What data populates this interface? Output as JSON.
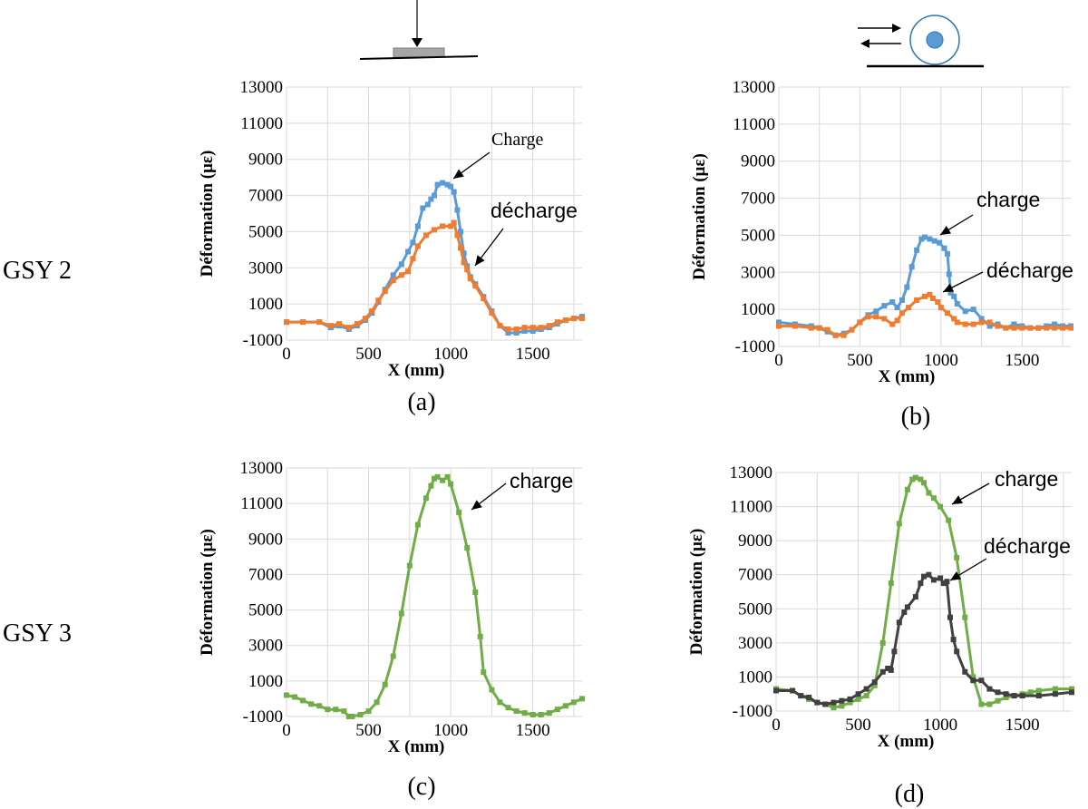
{
  "row_labels": [
    "GSY 2",
    "GSY 3"
  ],
  "chart_data": [
    {
      "type": "line",
      "panel": "(a)",
      "row": "GSY 2",
      "xlabel": "X (mm)",
      "ylabel": "Déformation (με)",
      "xlim": [
        0,
        1800
      ],
      "ylim": [
        -1000,
        13000
      ],
      "xticks": [
        0,
        500,
        1000,
        1500
      ],
      "yticks": [
        -1000,
        1000,
        3000,
        5000,
        7000,
        9000,
        11000,
        13000
      ],
      "series": [
        {
          "name": "Charge",
          "color": "#5B9BD5",
          "x": [
            0,
            100,
            200,
            270,
            320,
            380,
            430,
            480,
            520,
            560,
            600,
            650,
            700,
            740,
            770,
            800,
            830,
            860,
            880,
            900,
            920,
            950,
            980,
            1000,
            1020,
            1040,
            1060,
            1080,
            1100,
            1120,
            1150,
            1200,
            1250,
            1300,
            1350,
            1400,
            1450,
            1500,
            1550,
            1600,
            1650,
            1700,
            1750,
            1800
          ],
          "y": [
            0,
            0,
            0,
            -300,
            -200,
            -400,
            -200,
            100,
            500,
            1100,
            1800,
            2600,
            3200,
            3900,
            4400,
            5300,
            6300,
            6500,
            6800,
            7000,
            7600,
            7700,
            7600,
            7500,
            7200,
            6200,
            5000,
            3800,
            3100,
            2500,
            2100,
            1400,
            600,
            -200,
            -600,
            -600,
            -500,
            -500,
            -400,
            -300,
            -100,
            100,
            200,
            300
          ]
        },
        {
          "name": "décharge",
          "color": "#ED7D31",
          "x": [
            0,
            100,
            200,
            270,
            320,
            380,
            430,
            480,
            520,
            560,
            600,
            650,
            700,
            740,
            770,
            800,
            850,
            900,
            950,
            1000,
            1020,
            1040,
            1060,
            1080,
            1100,
            1120,
            1150,
            1200,
            1250,
            1300,
            1350,
            1400,
            1450,
            1500,
            1550,
            1600,
            1650,
            1700,
            1750,
            1800
          ],
          "y": [
            0,
            0,
            0,
            -200,
            -100,
            -300,
            -100,
            200,
            600,
            1200,
            1700,
            2300,
            2600,
            2800,
            3500,
            4200,
            4800,
            5100,
            5300,
            5300,
            5500,
            4800,
            4100,
            3300,
            2900,
            2400,
            2000,
            1300,
            500,
            -200,
            -400,
            -400,
            -300,
            -300,
            -300,
            -200,
            0,
            100,
            200,
            200
          ]
        }
      ],
      "annotations": [
        {
          "text": "Charge",
          "series": "Charge"
        },
        {
          "text": "décharge",
          "series": "décharge"
        }
      ]
    },
    {
      "type": "line",
      "panel": "(b)",
      "row": "GSY 2",
      "xlabel": "X (mm)",
      "ylabel": "Déformation (με)",
      "xlim": [
        0,
        1800
      ],
      "ylim": [
        -1000,
        13000
      ],
      "xticks": [
        0,
        500,
        1000,
        1500
      ],
      "yticks": [
        -1000,
        1000,
        3000,
        5000,
        7000,
        9000,
        11000,
        13000
      ],
      "series": [
        {
          "name": "charge",
          "color": "#5B9BD5",
          "x": [
            0,
            100,
            200,
            250,
            300,
            350,
            400,
            450,
            500,
            550,
            600,
            650,
            700,
            730,
            760,
            790,
            820,
            850,
            880,
            900,
            930,
            960,
            990,
            1020,
            1040,
            1050,
            1060,
            1080,
            1100,
            1150,
            1200,
            1250,
            1300,
            1350,
            1400,
            1450,
            1500,
            1550,
            1600,
            1650,
            1700,
            1750,
            1800
          ],
          "y": [
            300,
            200,
            100,
            0,
            -200,
            -400,
            -300,
            -100,
            300,
            700,
            900,
            1200,
            1400,
            1100,
            1500,
            2200,
            3300,
            4200,
            4800,
            4900,
            4800,
            4700,
            4600,
            4300,
            4000,
            2900,
            1900,
            1700,
            1300,
            900,
            1000,
            500,
            100,
            200,
            0,
            200,
            100,
            0,
            0,
            100,
            200,
            100,
            100
          ]
        },
        {
          "name": "décharge",
          "color": "#ED7D31",
          "x": [
            0,
            100,
            200,
            250,
            300,
            350,
            400,
            450,
            500,
            550,
            600,
            650,
            700,
            730,
            760,
            800,
            850,
            900,
            930,
            950,
            980,
            1000,
            1040,
            1080,
            1100,
            1150,
            1200,
            1250,
            1300,
            1350,
            1400,
            1450,
            1500,
            1550,
            1600,
            1650,
            1700,
            1750,
            1800
          ],
          "y": [
            100,
            100,
            0,
            0,
            -100,
            -400,
            -400,
            -100,
            300,
            600,
            600,
            500,
            200,
            400,
            800,
            1100,
            1500,
            1700,
            1800,
            1600,
            1400,
            1100,
            800,
            500,
            300,
            200,
            200,
            300,
            300,
            100,
            0,
            0,
            0,
            0,
            0,
            0,
            0,
            0,
            0
          ]
        }
      ],
      "annotations": [
        {
          "text": "charge",
          "series": "charge"
        },
        {
          "text": "décharge",
          "series": "décharge"
        }
      ]
    },
    {
      "type": "line",
      "panel": "(c)",
      "row": "GSY 3",
      "xlabel": "X (mm)",
      "ylabel": "Déformation (με)",
      "xlim": [
        0,
        1800
      ],
      "ylim": [
        -1000,
        13000
      ],
      "xticks": [
        0,
        500,
        1000,
        1500
      ],
      "yticks": [
        -1000,
        1000,
        3000,
        5000,
        7000,
        9000,
        11000,
        13000
      ],
      "series": [
        {
          "name": "charge",
          "color": "#70AD47",
          "x": [
            0,
            50,
            100,
            150,
            200,
            250,
            300,
            350,
            380,
            400,
            450,
            500,
            550,
            600,
            650,
            700,
            750,
            800,
            850,
            880,
            900,
            920,
            950,
            980,
            1000,
            1050,
            1100,
            1150,
            1180,
            1200,
            1250,
            1300,
            1350,
            1400,
            1450,
            1500,
            1550,
            1600,
            1650,
            1700,
            1750,
            1800
          ],
          "y": [
            200,
            100,
            -100,
            -300,
            -400,
            -600,
            -600,
            -700,
            -1000,
            -1000,
            -900,
            -700,
            -200,
            800,
            2400,
            4800,
            7500,
            9800,
            11300,
            12000,
            12400,
            12500,
            12300,
            12500,
            12100,
            10500,
            8500,
            6000,
            3500,
            1500,
            500,
            -200,
            -500,
            -700,
            -800,
            -900,
            -900,
            -800,
            -600,
            -400,
            -200,
            0
          ]
        }
      ],
      "annotations": [
        {
          "text": "charge",
          "series": "charge"
        }
      ]
    },
    {
      "type": "line",
      "panel": "(d)",
      "row": "GSY 3",
      "xlabel": "X (mm)",
      "ylabel": "Déformation (με)",
      "xlim": [
        0,
        1800
      ],
      "ylim": [
        -1000,
        13000
      ],
      "xticks": [
        0,
        500,
        1000,
        1500
      ],
      "yticks": [
        -1000,
        1000,
        3000,
        5000,
        7000,
        9000,
        11000,
        13000
      ],
      "series": [
        {
          "name": "charge",
          "color": "#70AD47",
          "x": [
            0,
            100,
            150,
            200,
            250,
            300,
            350,
            400,
            450,
            500,
            550,
            600,
            650,
            700,
            750,
            800,
            830,
            850,
            880,
            900,
            930,
            960,
            1000,
            1050,
            1100,
            1150,
            1200,
            1250,
            1300,
            1350,
            1400,
            1450,
            1500,
            1550,
            1600,
            1700,
            1800
          ],
          "y": [
            300,
            200,
            -100,
            -300,
            -500,
            -600,
            -800,
            -700,
            -500,
            -300,
            -100,
            500,
            3000,
            6500,
            10000,
            12000,
            12600,
            12700,
            12600,
            12400,
            11800,
            11500,
            11000,
            10200,
            8000,
            4500,
            1000,
            -600,
            -600,
            -400,
            -200,
            -100,
            0,
            100,
            200,
            300,
            300
          ]
        },
        {
          "name": "décharge",
          "color": "#404040",
          "x": [
            0,
            100,
            150,
            200,
            250,
            300,
            350,
            400,
            450,
            500,
            550,
            600,
            650,
            680,
            700,
            720,
            750,
            780,
            800,
            850,
            880,
            900,
            930,
            960,
            1000,
            1020,
            1040,
            1060,
            1080,
            1100,
            1150,
            1200,
            1250,
            1300,
            1350,
            1400,
            1450,
            1500,
            1600,
            1700,
            1800
          ],
          "y": [
            200,
            200,
            -100,
            -200,
            -500,
            -600,
            -500,
            -400,
            -300,
            0,
            300,
            700,
            1300,
            1500,
            1400,
            2500,
            4200,
            4800,
            5100,
            5700,
            6500,
            6900,
            7000,
            6700,
            6800,
            6500,
            6600,
            4500,
            3200,
            2500,
            1300,
            800,
            800,
            300,
            100,
            0,
            -100,
            -100,
            -100,
            0,
            100
          ]
        }
      ],
      "annotations": [
        {
          "text": "charge",
          "series": "charge"
        },
        {
          "text": "décharge",
          "series": "décharge"
        }
      ]
    }
  ]
}
